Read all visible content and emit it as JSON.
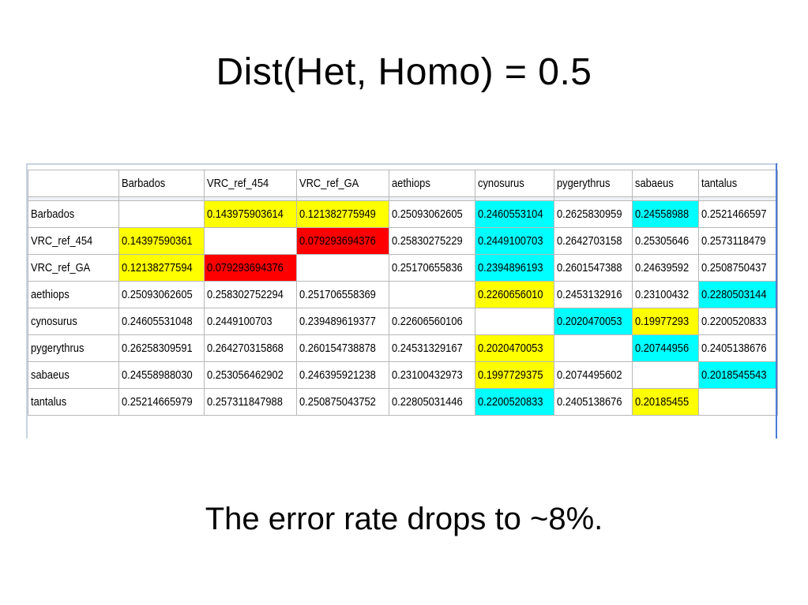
{
  "slide": {
    "title": "Dist(Het, Homo) = 0.5",
    "caption": "The error rate drops to ~8%."
  },
  "colors": {
    "yellow": "#ffff00",
    "cyan": "#00ffff",
    "red": "#ff0000"
  },
  "table": {
    "columns": [
      "Barbados",
      "VRC_ref_454",
      "VRC_ref_GA",
      "aethiops",
      "cynosurus",
      "pygerythrus",
      "sabaeus",
      "tantalus"
    ],
    "rows": [
      {
        "label": "Barbados",
        "cells": [
          {
            "text": "",
            "fill": ""
          },
          {
            "text": "0.143975903614",
            "fill": "yellow"
          },
          {
            "text": "0.121382775949",
            "fill": "yellow"
          },
          {
            "text": "0.25093062605",
            "fill": ""
          },
          {
            "text": "0.2460553104",
            "fill": "cyan"
          },
          {
            "text": "0.2625830959",
            "fill": ""
          },
          {
            "text": "0.24558988",
            "fill": "cyan"
          },
          {
            "text": "0.2521466597",
            "fill": ""
          }
        ]
      },
      {
        "label": "VRC_ref_454",
        "cells": [
          {
            "text": "0.14397590361",
            "fill": "yellow"
          },
          {
            "text": "",
            "fill": ""
          },
          {
            "text": "0.079293694376",
            "fill": "red"
          },
          {
            "text": "0.25830275229",
            "fill": ""
          },
          {
            "text": "0.2449100703",
            "fill": "cyan"
          },
          {
            "text": "0.2642703158",
            "fill": ""
          },
          {
            "text": "0.25305646",
            "fill": ""
          },
          {
            "text": "0.2573118479",
            "fill": ""
          }
        ]
      },
      {
        "label": "VRC_ref_GA",
        "cells": [
          {
            "text": "0.12138277594",
            "fill": "yellow"
          },
          {
            "text": "0.079293694376",
            "fill": "red"
          },
          {
            "text": "",
            "fill": ""
          },
          {
            "text": "0.25170655836",
            "fill": ""
          },
          {
            "text": "0.2394896193",
            "fill": "cyan"
          },
          {
            "text": "0.2601547388",
            "fill": ""
          },
          {
            "text": "0.24639592",
            "fill": ""
          },
          {
            "text": "0.2508750437",
            "fill": ""
          }
        ]
      },
      {
        "label": "aethiops",
        "cells": [
          {
            "text": "0.25093062605",
            "fill": ""
          },
          {
            "text": "0.258302752294",
            "fill": ""
          },
          {
            "text": "0.251706558369",
            "fill": ""
          },
          {
            "text": "",
            "fill": ""
          },
          {
            "text": "0.2260656010",
            "fill": "yellow"
          },
          {
            "text": "0.2453132916",
            "fill": ""
          },
          {
            "text": "0.23100432",
            "fill": ""
          },
          {
            "text": "0.2280503144",
            "fill": "cyan"
          }
        ]
      },
      {
        "label": "cynosurus",
        "cells": [
          {
            "text": "0.24605531048",
            "fill": ""
          },
          {
            "text": "0.2449100703",
            "fill": ""
          },
          {
            "text": "0.239489619377",
            "fill": ""
          },
          {
            "text": "0.22606560106",
            "fill": ""
          },
          {
            "text": "",
            "fill": ""
          },
          {
            "text": "0.2020470053",
            "fill": "cyan"
          },
          {
            "text": "0.19977293",
            "fill": "yellow"
          },
          {
            "text": "0.2200520833",
            "fill": ""
          }
        ]
      },
      {
        "label": "pygerythrus",
        "cells": [
          {
            "text": "0.26258309591",
            "fill": ""
          },
          {
            "text": "0.264270315868",
            "fill": ""
          },
          {
            "text": "0.260154738878",
            "fill": ""
          },
          {
            "text": "0.24531329167",
            "fill": ""
          },
          {
            "text": "0.2020470053",
            "fill": "yellow"
          },
          {
            "text": "",
            "fill": ""
          },
          {
            "text": "0.20744956",
            "fill": "cyan"
          },
          {
            "text": "0.2405138676",
            "fill": ""
          }
        ]
      },
      {
        "label": "sabaeus",
        "cells": [
          {
            "text": "0.24558988030",
            "fill": ""
          },
          {
            "text": "0.253056462902",
            "fill": ""
          },
          {
            "text": "0.246395921238",
            "fill": ""
          },
          {
            "text": "0.23100432973",
            "fill": ""
          },
          {
            "text": "0.1997729375",
            "fill": "yellow"
          },
          {
            "text": "0.2074495602",
            "fill": ""
          },
          {
            "text": "",
            "fill": ""
          },
          {
            "text": "0.2018545543",
            "fill": "cyan"
          }
        ]
      },
      {
        "label": "tantalus",
        "cells": [
          {
            "text": "0.25214665979",
            "fill": ""
          },
          {
            "text": "0.257311847988",
            "fill": ""
          },
          {
            "text": "0.250875043752",
            "fill": ""
          },
          {
            "text": "0.22805031446",
            "fill": ""
          },
          {
            "text": "0.2200520833",
            "fill": "cyan"
          },
          {
            "text": "0.2405138676",
            "fill": ""
          },
          {
            "text": "0.20185455",
            "fill": "yellow"
          },
          {
            "text": "",
            "fill": ""
          }
        ]
      }
    ]
  }
}
